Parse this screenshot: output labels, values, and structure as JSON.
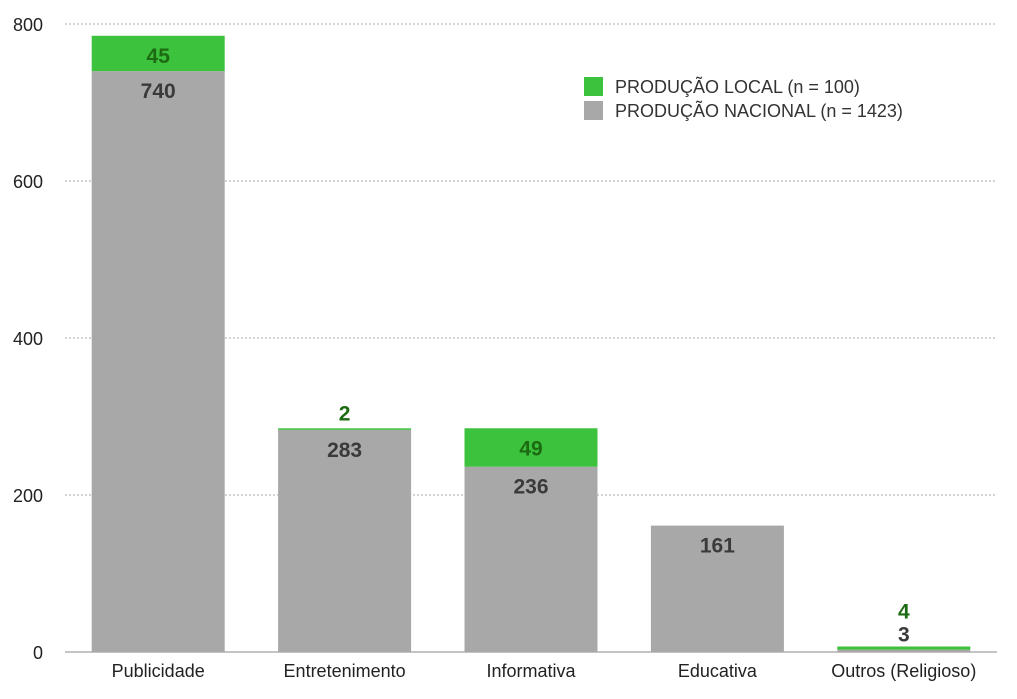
{
  "chart_data": {
    "type": "bar",
    "stacked": true,
    "categories": [
      "Publicidade",
      "Entretenimento",
      "Informativa",
      "Educativa",
      "Outros (Religioso)"
    ],
    "series": [
      {
        "name": "PRODUÇÃO NACIONAL (n = 1423)",
        "values": [
          740,
          283,
          236,
          161,
          3
        ],
        "labels": [
          "740",
          "283",
          "236",
          "161",
          "3"
        ],
        "color": "#a8a8a8"
      },
      {
        "name": "PRODUÇÃO LOCAL (n = 100)",
        "values": [
          45,
          2,
          49,
          0,
          4
        ],
        "labels": [
          "45",
          "2",
          "49",
          "",
          "4"
        ],
        "color": "#3cc23c"
      }
    ],
    "legend_order": [
      1,
      0
    ],
    "ylim": [
      0,
      800
    ],
    "yticks": [
      "0",
      "200",
      "400",
      "600",
      "800"
    ],
    "grid": true,
    "legend": "top-right",
    "title": "",
    "xlabel": "",
    "ylabel": ""
  }
}
